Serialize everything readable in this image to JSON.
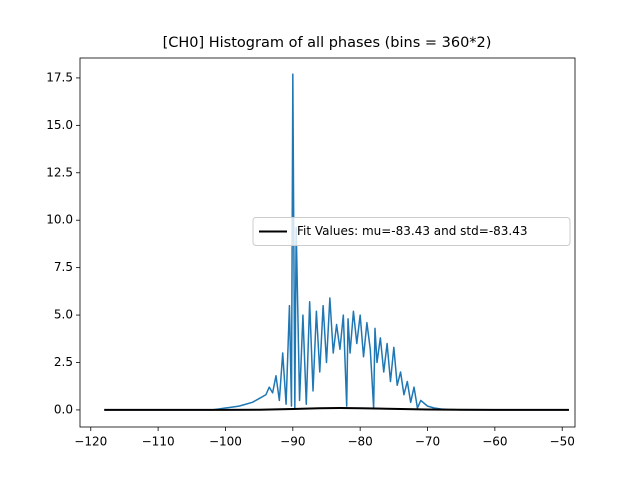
{
  "chart_data": {
    "type": "line",
    "title": "[CH0] Histogram of all phases (bins = 360*2)",
    "xlim": [
      -121.6,
      -48.1
    ],
    "ylim": [
      -0.9,
      18.55
    ],
    "xticks": [
      {
        "value": -120,
        "label": "−120"
      },
      {
        "value": -110,
        "label": "−110"
      },
      {
        "value": -100,
        "label": "−100"
      },
      {
        "value": -90,
        "label": "−90"
      },
      {
        "value": -80,
        "label": "−80"
      },
      {
        "value": -70,
        "label": "−70"
      },
      {
        "value": -60,
        "label": "−60"
      },
      {
        "value": -50,
        "label": "−50"
      }
    ],
    "yticks": [
      {
        "value": 0,
        "label": "0.0"
      },
      2.5,
      {
        "value": 5,
        "label": "5.0"
      },
      7.5,
      {
        "value": 10,
        "label": "10.0"
      },
      12.5,
      {
        "value": 15,
        "label": "15.0"
      },
      17.5
    ],
    "legend_position": "center right",
    "series": [
      {
        "color": "#1f77b4",
        "width": 1.5,
        "x": [
          -118,
          -116,
          -114,
          -112,
          -110,
          -108,
          -106,
          -104,
          -102,
          -101,
          -100,
          -99,
          -98,
          -97,
          -96,
          -95,
          -94,
          -93.5,
          -93,
          -92.5,
          -92,
          -91.5,
          -91,
          -90.5,
          -90.2,
          -90,
          -89.7,
          -89.5,
          -89,
          -88.5,
          -88,
          -87.5,
          -87,
          -86.5,
          -86,
          -85.5,
          -85,
          -84.5,
          -84,
          -83.5,
          -83,
          -82.5,
          -82,
          -81.8,
          -81.5,
          -81,
          -80.5,
          -80,
          -79.5,
          -79,
          -78.5,
          -78,
          -77.8,
          -77.5,
          -77,
          -76.5,
          -76,
          -75.5,
          -75,
          -74.5,
          -74,
          -73.5,
          -73,
          -72.5,
          -72,
          -71.5,
          -71,
          -70,
          -69,
          -68,
          -67,
          -65,
          -63,
          -61,
          -59,
          -57,
          -55,
          -53,
          -51,
          -49
        ],
        "values": [
          0,
          0,
          0,
          0,
          0,
          0,
          0,
          0,
          0,
          0.05,
          0.1,
          0.15,
          0.2,
          0.3,
          0.4,
          0.6,
          0.8,
          1.2,
          0.9,
          1.8,
          0.5,
          3.0,
          0.3,
          5.5,
          0.2,
          17.7,
          0.1,
          9.6,
          0.5,
          5.0,
          0.3,
          5.7,
          1.0,
          5.2,
          2.0,
          5.5,
          2.5,
          5.9,
          3.0,
          4.5,
          3.2,
          5.0,
          0.2,
          4.8,
          3.0,
          5.2,
          3.5,
          5.0,
          2.8,
          4.6,
          3.2,
          0.1,
          4.3,
          2.5,
          3.8,
          2.0,
          3.5,
          1.5,
          3.3,
          1.3,
          2.0,
          0.8,
          1.5,
          0.4,
          1.2,
          0.1,
          0.5,
          0.2,
          0.1,
          0.05,
          0.02,
          0,
          0,
          0,
          0,
          0,
          0,
          0,
          0,
          0
        ]
      },
      {
        "name": "Fit Values: mu=-83.43 and std=-83.43",
        "color": "#000000",
        "width": 2,
        "x": [
          -118,
          -110,
          -100,
          -95,
          -90,
          -86,
          -83,
          -80,
          -76,
          -70,
          -65,
          -60,
          -49
        ],
        "values": [
          0,
          0,
          0.001,
          0.012,
          0.05,
          0.09,
          0.1,
          0.091,
          0.065,
          0.025,
          0.007,
          0.001,
          0
        ]
      }
    ]
  }
}
